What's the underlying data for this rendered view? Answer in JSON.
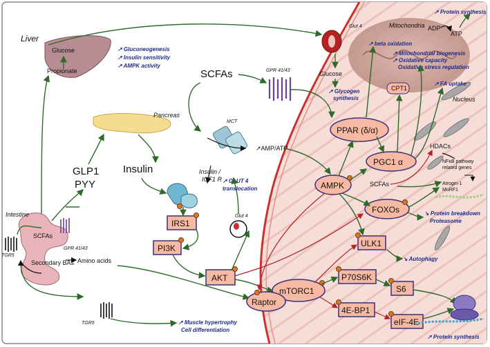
{
  "labels": {
    "liver": "Liver",
    "glucose_liver": "Glucose",
    "propionate": "Propionate",
    "gluconeogenesis": "↗ Gluconeogenesis",
    "insulin_sensitivity": "↗ Insulin sensitivity",
    "ampk_activity": "↗ AMPK activity",
    "pancreas": "Pancreas",
    "insulin": "Insulin",
    "glp1": "GLP1",
    "pyy": "PYY",
    "intestine": "Intestine",
    "tgr5_left": "TGR5",
    "scfas_small": "SCFAs",
    "gpr_small": "GPR 41/43",
    "secondary_bas": "Secondary BAs",
    "amino_acids": "Amino acids",
    "tgr5_bottom": "TGR5",
    "muscle_hypertrophy": "↗ Muscle hypertrophy",
    "cell_differentiation": "Cell differentiation",
    "scfas_big": "SCFAs",
    "gpr_big": "GPR 41/43",
    "mct": "MCT",
    "amp_atp": "↗AMP/ATP",
    "insulin_igf1r_1": "Insulin /",
    "insulin_igf1r_2": "IGF1 R",
    "glut4_translocation_1": "↗ GLUT 4",
    "glut4_translocation_2": "translocation",
    "glut4_mid": "Glut 4",
    "glut4_top": "Glut 4",
    "glucose_muscle": "Glucose",
    "glycogen_1": "↗ Glycogen",
    "glycogen_2": "synthesis",
    "mitochondria": "Mitochondria",
    "beta_oxidation": "↗ beta oxidation",
    "mito_biogenesis": "↗ Mitochondrial biogenesis",
    "oxidative_capacity": "↗ Oxidative capacity",
    "oxidative_stress": "Oxidative stress regulation",
    "cpt1": "CPT1",
    "adp": "ADP",
    "atp": "ATP",
    "protein_synthesis_top": "↗ Protein synthesis",
    "fa_uptake": "↗ FA uptake",
    "nucleus": "Nucleus",
    "ppar": "PPAR (δ/α)",
    "pgc1a": "PGC1 α",
    "hdacs": "HDACs",
    "nfkb_1": "NFκB pathway",
    "nfkb_2": "related genes",
    "scfas_right": "SCFAs",
    "atrogin": "Atrogin-1",
    "murf1": "MuRF1",
    "ampk": "AMPK",
    "foxos": "FOXOs",
    "protein_breakdown": "↘ Protein breakdown",
    "proteasome": "Proteasome",
    "irs1": "IRS1",
    "pi3k": "PI3K",
    "akt": "AKT",
    "ulk1": "ULK1",
    "autophagy": "↘ Autophagy",
    "mtorc1": "mTORC1",
    "raptor": "Raptor",
    "p70s6k": "P70S6K",
    "s6": "S6",
    "ebp1": "4E-BP1",
    "eif4e": "eIF-4E",
    "protein_synthesis_bottom": "↗ Protein synthesis"
  },
  "colors": {
    "muscle": "#f6ddd8",
    "muscle_stripe": "#e7b7ae",
    "sarcolemma": "#c9302e",
    "node_fill": "#f6b9a3",
    "node_stroke": "#3a2f7a",
    "arrow_green": "#2e6a2a",
    "arrow_red": "#b52222",
    "text_blue": "#1e2a8a"
  }
}
